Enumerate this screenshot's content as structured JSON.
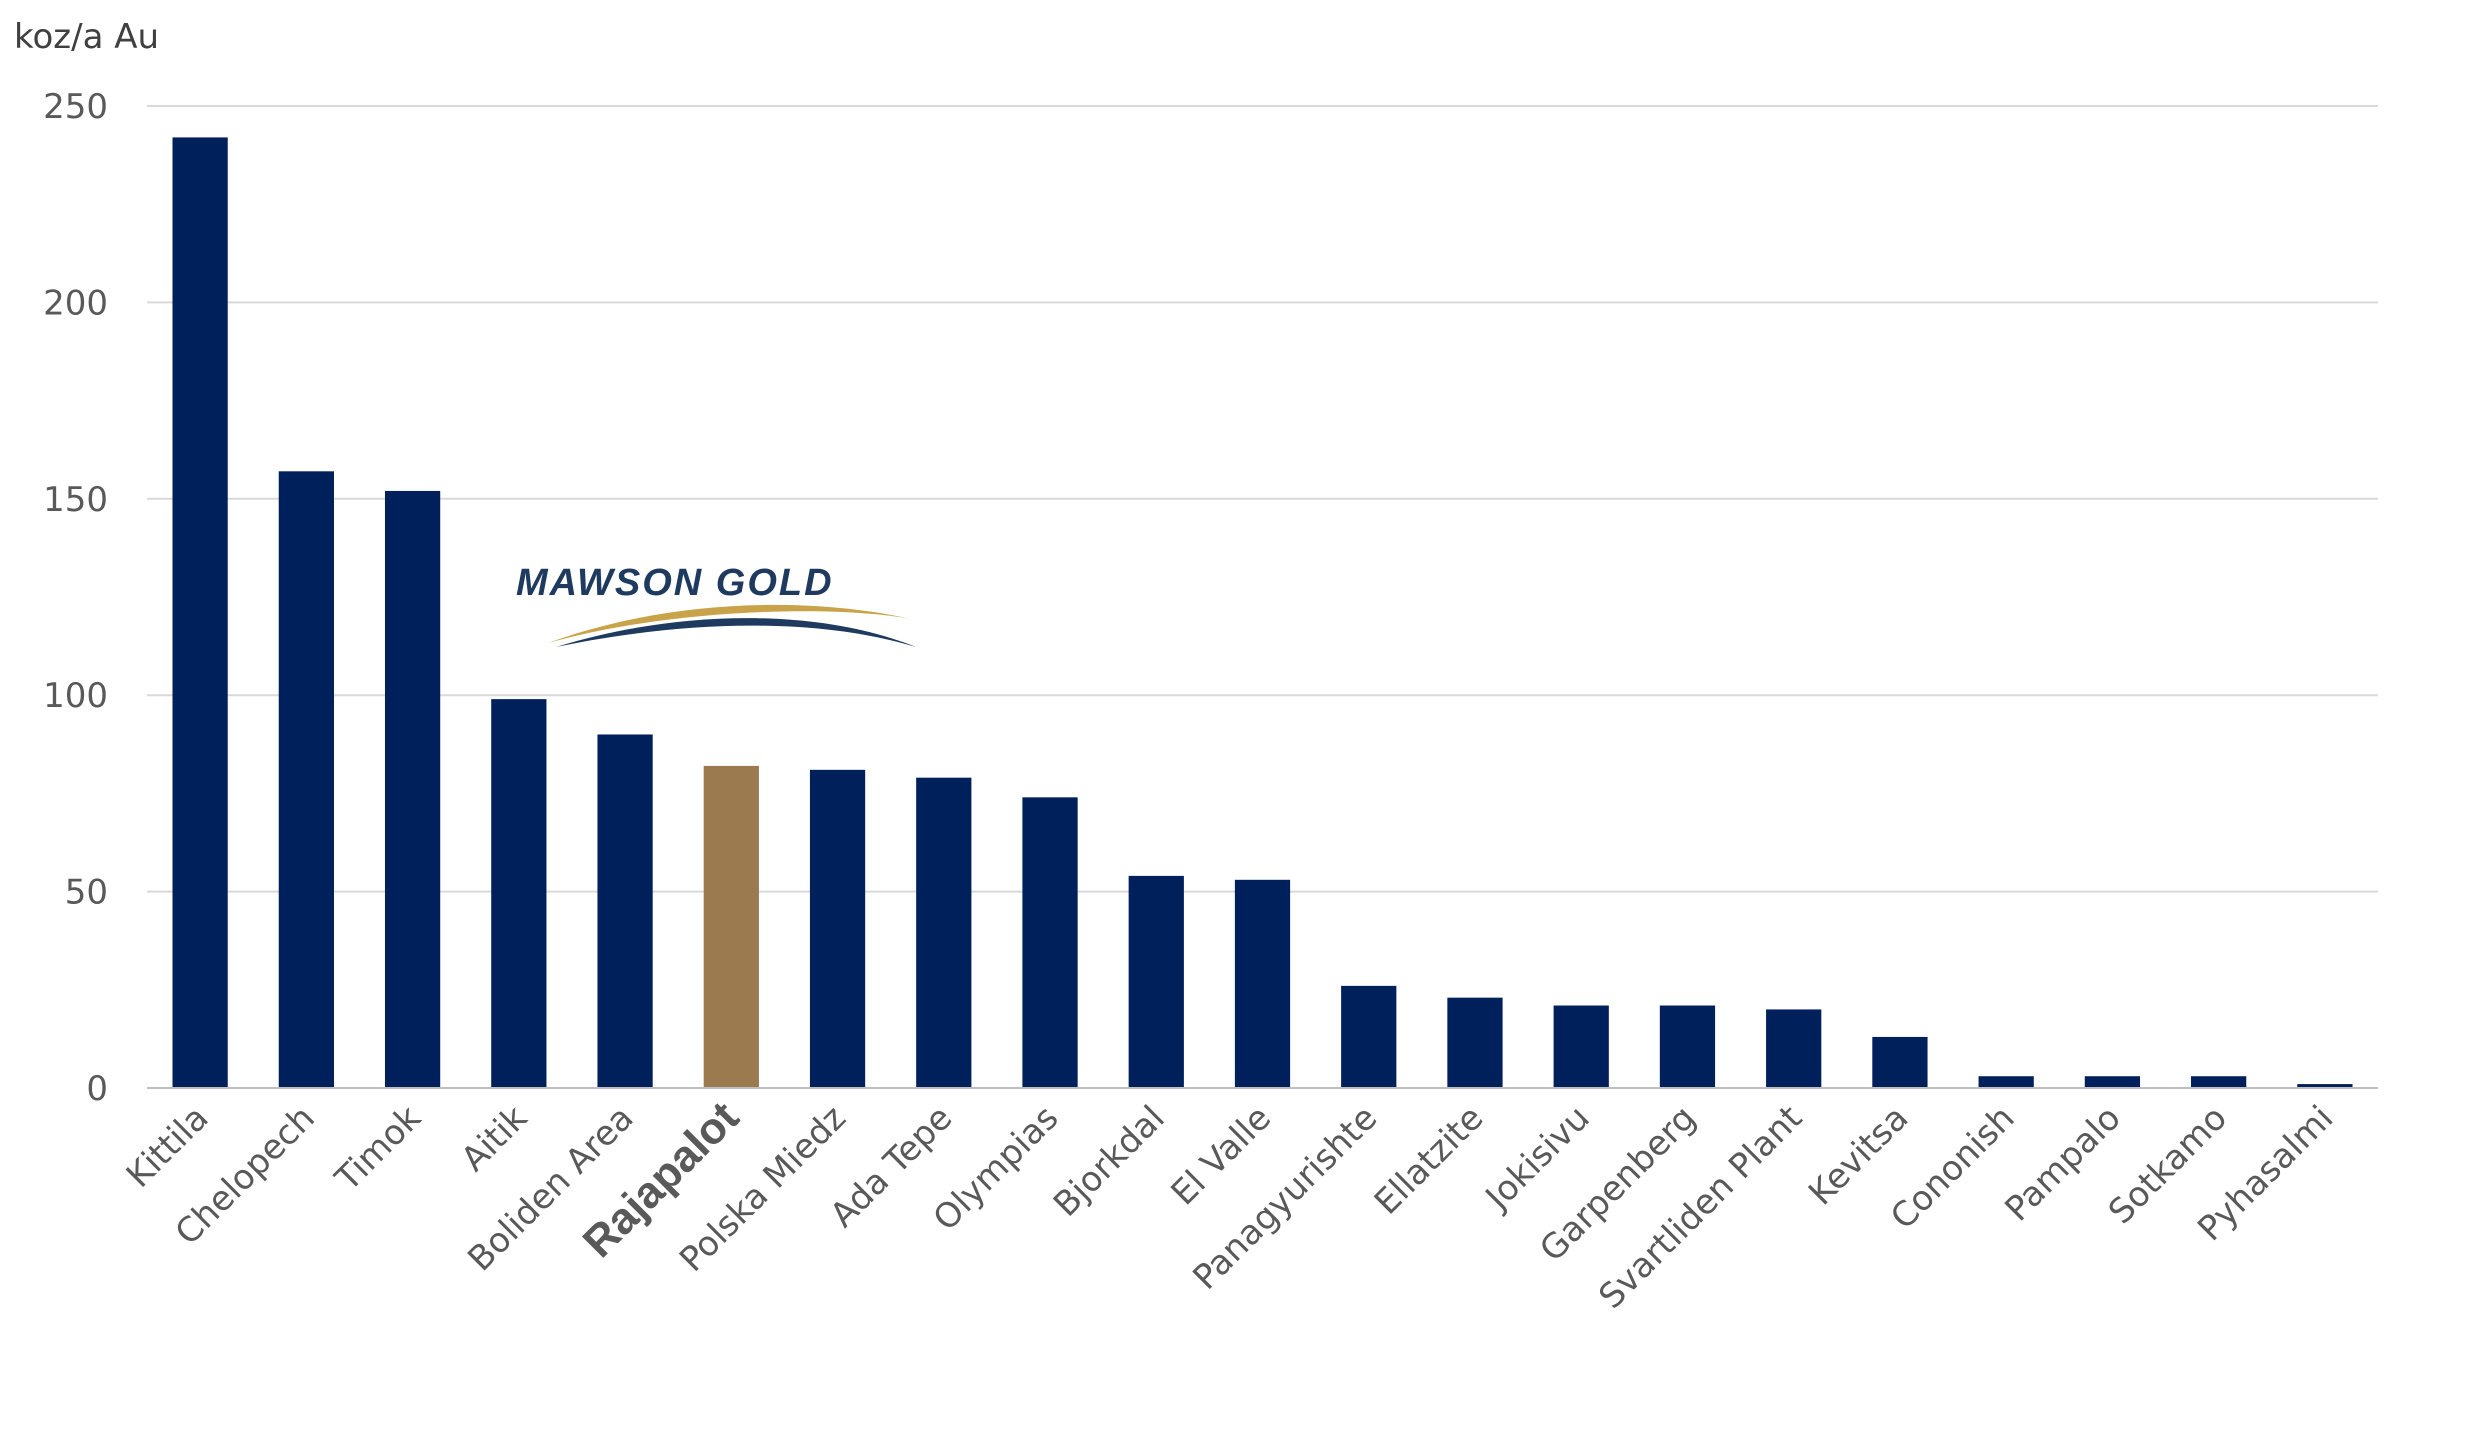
{
  "chart_data": {
    "type": "bar",
    "ylabel": "koz/a Au",
    "ylim": [
      0,
      250
    ],
    "yticks": [
      0,
      50,
      100,
      150,
      200,
      250
    ],
    "grid": true,
    "categories": [
      "Kittila",
      "Chelopech",
      "Timok",
      "Aitik",
      "Boliden Area",
      "Rajapalot",
      "Polska Miedz",
      "Ada Tepe",
      "Olympias",
      "Bjorkdal",
      "El Valle",
      "Panagyurishte",
      "Ellatzite",
      "Jokisivu",
      "Garpenberg",
      "Svartliden Plant",
      "Kevitsa",
      "Cononish",
      "Pampalo",
      "Sotkamo",
      "Pyhasalmi"
    ],
    "values": [
      242,
      157,
      152,
      99,
      90,
      82,
      81,
      79,
      74,
      54,
      53,
      26,
      23,
      21,
      21,
      20,
      13,
      3,
      3,
      3,
      1
    ],
    "highlight_category": "Rajapalot",
    "colors": {
      "bar": "#00205b",
      "highlight": "#9a7a4e",
      "grid": "#d9d9d9",
      "axis": "#bfbfbf"
    }
  },
  "logo": {
    "text": "MAWSON GOLD",
    "text_color": "#1f3a5f",
    "arc_color_gold": "#c9a34a",
    "arc_color_navy": "#1f3a5f"
  }
}
